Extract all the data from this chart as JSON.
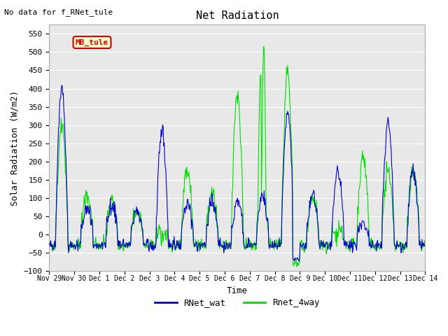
{
  "title": "Net Radiation",
  "xlabel": "Time",
  "ylabel": "Solar Radiation (W/m2)",
  "no_data_text": "No data for f_RNet_tule",
  "mb_tule_label": "MB_tule",
  "legend_labels": [
    "RNet_wat",
    "Rnet_4way"
  ],
  "line_colors": [
    "#0000cc",
    "#00dd00"
  ],
  "background_color": "#e8e8e8",
  "ylim": [
    -100,
    575
  ],
  "yticks": [
    -100,
    -50,
    0,
    50,
    100,
    150,
    200,
    250,
    300,
    350,
    400,
    450,
    500,
    550
  ],
  "xtick_labels": [
    "Nov 29",
    "Nov 30",
    "Dec 1",
    "Dec 2",
    "Dec 3",
    "Dec 4",
    "Dec 5",
    "Dec 6",
    "Dec 7",
    "Dec 8",
    "Dec 9",
    "Dec 10",
    "Dec 11",
    "Dec 12",
    "Dec 13",
    "Dec 14"
  ],
  "xtick_positions": [
    0,
    1,
    2,
    3,
    4,
    5,
    6,
    7,
    8,
    9,
    10,
    11,
    12,
    13,
    14,
    15
  ]
}
